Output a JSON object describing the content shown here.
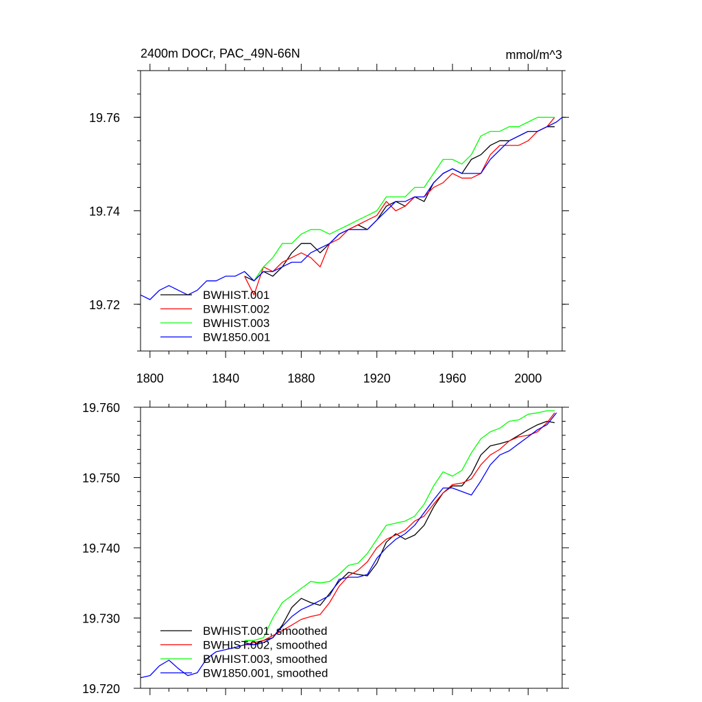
{
  "colors": {
    "BWHIST.001": "#000000",
    "BWHIST.002": "#ff0000",
    "BWHIST.003": "#00ff00",
    "BW1850.001": "#0000ff"
  },
  "chart_data": [
    {
      "type": "line",
      "title": "2400m DOCr, PAC_49N-66N",
      "units": "mmol/m^3",
      "xlim": [
        1795,
        2018
      ],
      "ylim": [
        19.71,
        19.77
      ],
      "xticks": [
        1800,
        1840,
        1880,
        1920,
        1960,
        2000
      ],
      "xtick_labels": [
        "1800",
        "1840",
        "1880",
        "1920",
        "1960",
        "2000"
      ],
      "yticks": [
        19.72,
        19.74,
        19.76
      ],
      "ytick_labels": [
        "19.72",
        "19.74",
        "19.76"
      ],
      "grid": false,
      "legend": "bottom-left",
      "series": [
        {
          "name": "BWHIST.001",
          "color": "#000000",
          "x": [
            1850,
            1855,
            1860,
            1865,
            1870,
            1875,
            1880,
            1885,
            1890,
            1895,
            1900,
            1905,
            1910,
            1915,
            1920,
            1925,
            1930,
            1935,
            1940,
            1945,
            1950,
            1955,
            1960,
            1965,
            1970,
            1975,
            1980,
            1985,
            1990,
            1995,
            2000,
            2005,
            2010,
            2014
          ],
          "y": [
            19.726,
            19.725,
            19.727,
            19.726,
            19.728,
            19.731,
            19.733,
            19.733,
            19.731,
            19.733,
            19.735,
            19.736,
            19.737,
            19.736,
            19.738,
            19.741,
            19.742,
            19.741,
            19.743,
            19.742,
            19.746,
            19.748,
            19.749,
            19.748,
            19.751,
            19.752,
            19.754,
            19.755,
            19.755,
            19.756,
            19.757,
            19.757,
            19.758,
            19.758
          ]
        },
        {
          "name": "BWHIST.002",
          "color": "#ff0000",
          "x": [
            1850,
            1855,
            1860,
            1865,
            1870,
            1875,
            1880,
            1885,
            1890,
            1895,
            1900,
            1905,
            1910,
            1915,
            1920,
            1925,
            1930,
            1935,
            1940,
            1945,
            1950,
            1955,
            1960,
            1965,
            1970,
            1975,
            1980,
            1985,
            1990,
            1995,
            2000,
            2005,
            2010,
            2014
          ],
          "y": [
            19.726,
            19.722,
            19.728,
            19.727,
            19.729,
            19.73,
            19.731,
            19.73,
            19.728,
            19.733,
            19.734,
            19.736,
            19.737,
            19.738,
            19.739,
            19.742,
            19.74,
            19.741,
            19.743,
            19.743,
            19.745,
            19.746,
            19.748,
            19.747,
            19.747,
            19.748,
            19.752,
            19.754,
            19.754,
            19.754,
            19.755,
            19.757,
            19.758,
            19.76
          ]
        },
        {
          "name": "BWHIST.003",
          "color": "#00ff00",
          "x": [
            1850,
            1855,
            1860,
            1865,
            1870,
            1875,
            1880,
            1885,
            1890,
            1895,
            1900,
            1905,
            1910,
            1915,
            1920,
            1925,
            1930,
            1935,
            1940,
            1945,
            1950,
            1955,
            1960,
            1965,
            1970,
            1975,
            1980,
            1985,
            1990,
            1995,
            2000,
            2005,
            2010,
            2014
          ],
          "y": [
            19.727,
            19.725,
            19.728,
            19.73,
            19.733,
            19.733,
            19.735,
            19.736,
            19.736,
            19.735,
            19.736,
            19.737,
            19.738,
            19.739,
            19.74,
            19.743,
            19.743,
            19.743,
            19.745,
            19.745,
            19.748,
            19.751,
            19.751,
            19.75,
            19.752,
            19.756,
            19.757,
            19.757,
            19.758,
            19.758,
            19.759,
            19.76,
            19.76,
            19.76
          ]
        },
        {
          "name": "BW1850.001",
          "color": "#0000ff",
          "x": [
            1795,
            1800,
            1805,
            1810,
            1815,
            1820,
            1825,
            1830,
            1835,
            1840,
            1845,
            1850,
            1855,
            1860,
            1865,
            1870,
            1875,
            1880,
            1885,
            1890,
            1895,
            1900,
            1905,
            1910,
            1915,
            1920,
            1925,
            1930,
            1935,
            1940,
            1945,
            1950,
            1955,
            1960,
            1965,
            1970,
            1975,
            1980,
            1985,
            1990,
            1995,
            2000,
            2005,
            2010,
            2015,
            2018
          ],
          "y": [
            19.722,
            19.721,
            19.723,
            19.724,
            19.723,
            19.722,
            19.723,
            19.725,
            19.725,
            19.726,
            19.726,
            19.727,
            19.725,
            19.727,
            19.727,
            19.728,
            19.729,
            19.729,
            19.731,
            19.732,
            19.733,
            19.735,
            19.736,
            19.736,
            19.736,
            19.738,
            19.74,
            19.742,
            19.742,
            19.743,
            19.743,
            19.746,
            19.748,
            19.749,
            19.748,
            19.748,
            19.748,
            19.751,
            19.753,
            19.755,
            19.756,
            19.757,
            19.757,
            19.758,
            19.759,
            19.76
          ]
        }
      ]
    },
    {
      "type": "line",
      "title": "",
      "units": "",
      "xlim": [
        1795,
        2018
      ],
      "ylim": [
        19.72,
        19.76
      ],
      "xticks": [
        1800,
        1840,
        1880,
        1920,
        1960,
        2000
      ],
      "xtick_labels": [],
      "yticks": [
        19.72,
        19.73,
        19.74,
        19.75,
        19.76
      ],
      "ytick_labels": [
        "19.720",
        "19.730",
        "19.740",
        "19.750",
        "19.760"
      ],
      "grid": false,
      "legend": "bottom-left",
      "series": [
        {
          "name": "BWHIST.001, smoothed",
          "color": "#000000",
          "x": [
            1850,
            1855,
            1860,
            1865,
            1870,
            1875,
            1880,
            1885,
            1890,
            1895,
            1900,
            1905,
            1910,
            1915,
            1920,
            1925,
            1930,
            1935,
            1940,
            1945,
            1950,
            1955,
            1960,
            1965,
            1970,
            1975,
            1980,
            1985,
            1990,
            1995,
            2000,
            2005,
            2010,
            2014
          ],
          "y": [
            19.7265,
            19.7262,
            19.7268,
            19.7272,
            19.729,
            19.7315,
            19.7328,
            19.7322,
            19.7318,
            19.7335,
            19.7352,
            19.7365,
            19.7362,
            19.736,
            19.7378,
            19.7408,
            19.742,
            19.7412,
            19.7418,
            19.7432,
            19.7458,
            19.7478,
            19.7488,
            19.7488,
            19.7505,
            19.7532,
            19.7545,
            19.7548,
            19.7552,
            19.756,
            19.7568,
            19.7575,
            19.758,
            19.7578
          ]
        },
        {
          "name": "BWHIST.002, smoothed",
          "color": "#ff0000",
          "x": [
            1850,
            1855,
            1860,
            1865,
            1870,
            1875,
            1880,
            1885,
            1890,
            1895,
            1900,
            1905,
            1910,
            1915,
            1920,
            1925,
            1930,
            1935,
            1940,
            1945,
            1950,
            1955,
            1960,
            1965,
            1970,
            1975,
            1980,
            1985,
            1990,
            1995,
            2000,
            2005,
            2010,
            2014
          ],
          "y": [
            19.7262,
            19.7265,
            19.7268,
            19.7275,
            19.7282,
            19.729,
            19.7298,
            19.7302,
            19.7305,
            19.7322,
            19.7345,
            19.736,
            19.7368,
            19.738,
            19.74,
            19.7412,
            19.7418,
            19.7425,
            19.7438,
            19.7445,
            19.7462,
            19.7478,
            19.749,
            19.7492,
            19.7498,
            19.7518,
            19.7532,
            19.754,
            19.7552,
            19.7558,
            19.756,
            19.7565,
            19.7578,
            19.7592
          ]
        },
        {
          "name": "BWHIST.003, smoothed",
          "color": "#00ff00",
          "x": [
            1850,
            1855,
            1860,
            1865,
            1870,
            1875,
            1880,
            1885,
            1890,
            1895,
            1900,
            1905,
            1910,
            1915,
            1920,
            1925,
            1930,
            1935,
            1940,
            1945,
            1950,
            1955,
            1960,
            1965,
            1970,
            1975,
            1980,
            1985,
            1990,
            1995,
            2000,
            2005,
            2010,
            2014
          ],
          "y": [
            19.7268,
            19.7268,
            19.7272,
            19.73,
            19.7322,
            19.7332,
            19.7342,
            19.7352,
            19.735,
            19.7352,
            19.7362,
            19.7375,
            19.7378,
            19.7392,
            19.7412,
            19.7432,
            19.7435,
            19.7438,
            19.7445,
            19.7462,
            19.7488,
            19.7508,
            19.7502,
            19.751,
            19.7535,
            19.7555,
            19.7565,
            19.757,
            19.758,
            19.7582,
            19.759,
            19.7592,
            19.7595,
            19.7595
          ]
        },
        {
          "name": "BW1850.001, smoothed",
          "color": "#0000ff",
          "x": [
            1795,
            1800,
            1805,
            1810,
            1815,
            1820,
            1825,
            1830,
            1835,
            1840,
            1845,
            1850,
            1855,
            1860,
            1865,
            1870,
            1875,
            1880,
            1885,
            1890,
            1895,
            1900,
            1905,
            1910,
            1915,
            1920,
            1925,
            1930,
            1935,
            1940,
            1945,
            1950,
            1955,
            1960,
            1965,
            1970,
            1975,
            1980,
            1985,
            1990,
            1995,
            2000,
            2005,
            2010,
            2015
          ],
          "y": [
            19.7215,
            19.7218,
            19.7232,
            19.724,
            19.7228,
            19.7218,
            19.7222,
            19.7242,
            19.7252,
            19.7255,
            19.7258,
            19.7262,
            19.7262,
            19.7265,
            19.7272,
            19.7288,
            19.7302,
            19.7312,
            19.7318,
            19.7325,
            19.7332,
            19.7355,
            19.7358,
            19.7358,
            19.7362,
            19.7385,
            19.74,
            19.7412,
            19.742,
            19.7432,
            19.745,
            19.7468,
            19.7485,
            19.7485,
            19.748,
            19.7475,
            19.7495,
            19.7518,
            19.7532,
            19.7538,
            19.7548,
            19.7558,
            19.7568,
            19.7575,
            19.7592
          ]
        }
      ]
    }
  ]
}
